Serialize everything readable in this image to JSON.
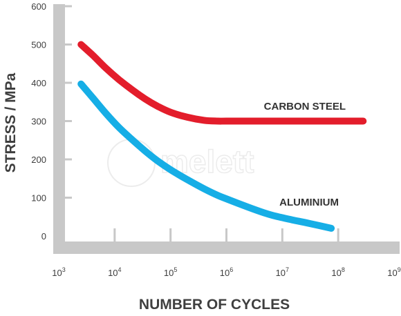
{
  "chart_data": {
    "type": "line",
    "title": "",
    "xlabel": "NUMBER OF CYCLES",
    "ylabel": "STRESS / MPa",
    "x_scale": "log",
    "xlim": [
      1000,
      1000000000
    ],
    "ylim": [
      0,
      600
    ],
    "x_ticks": [
      {
        "base": "10",
        "exp": "3"
      },
      {
        "base": "10",
        "exp": "4"
      },
      {
        "base": "10",
        "exp": "5"
      },
      {
        "base": "10",
        "exp": "6"
      },
      {
        "base": "10",
        "exp": "7"
      },
      {
        "base": "10",
        "exp": "8"
      },
      {
        "base": "10",
        "exp": "9"
      }
    ],
    "y_ticks": [
      "0",
      "100",
      "200",
      "300",
      "400",
      "500",
      "600"
    ],
    "grid": false,
    "watermark": "melett",
    "series": [
      {
        "name": "CARBON STEEL",
        "color": "#e31d2b",
        "x": [
          2500,
          4000,
          7000,
          12000,
          20000,
          35000,
          60000,
          100000,
          200000,
          400000,
          700000,
          1000000,
          3000000,
          10000000,
          30000000,
          100000000,
          280000000
        ],
        "y": [
          500,
          473,
          438,
          408,
          383,
          358,
          338,
          323,
          310,
          302,
          300,
          300,
          300,
          300,
          300,
          300,
          300
        ]
      },
      {
        "name": "ALUMINIUM",
        "color": "#16aee6",
        "x": [
          2500,
          4000,
          7000,
          12000,
          20000,
          35000,
          60000,
          100000,
          200000,
          400000,
          700000,
          1000000,
          2000000,
          4000000,
          7000000,
          15000000,
          30000000,
          75000000
        ],
        "y": [
          397,
          362,
          320,
          283,
          253,
          222,
          195,
          173,
          147,
          123,
          106,
          97,
          80,
          64,
          53,
          42,
          33,
          20
        ]
      }
    ]
  }
}
